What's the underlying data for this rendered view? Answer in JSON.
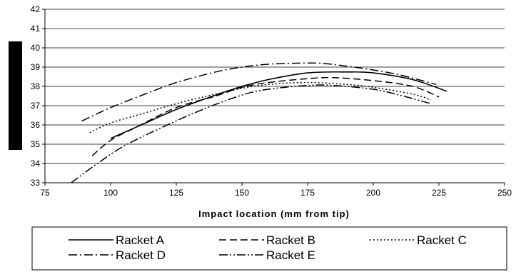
{
  "chart_data": {
    "type": "line",
    "title": "",
    "xlabel": "Impact location (mm from tip)",
    "ylabel": "",
    "xlim": [
      75,
      250
    ],
    "ylim": [
      33,
      42
    ],
    "x_ticks": [
      "75",
      "100",
      "125",
      "150",
      "175",
      "200",
      "225",
      "250"
    ],
    "y_ticks": [
      "33",
      "34",
      "35",
      "36",
      "37",
      "38",
      "39",
      "40",
      "41",
      "42"
    ],
    "grid": "horizontal",
    "legend_position": "bottom",
    "series": [
      {
        "name": "Racket A",
        "style": "solid",
        "x": [
          100,
          110,
          125,
          140,
          150,
          160,
          175,
          190,
          200,
          215,
          228
        ],
        "y": [
          35.3,
          35.9,
          36.8,
          37.55,
          38.0,
          38.35,
          38.7,
          38.75,
          38.7,
          38.35,
          37.75
        ]
      },
      {
        "name": "Racket B",
        "style": "dashed",
        "x": [
          93,
          100,
          110,
          125,
          140,
          150,
          160,
          175,
          185,
          200,
          215,
          225
        ],
        "y": [
          34.4,
          35.2,
          35.9,
          36.9,
          37.5,
          37.95,
          38.2,
          38.4,
          38.45,
          38.3,
          38.0,
          37.45
        ]
      },
      {
        "name": "Racket C",
        "style": "dotted",
        "x": [
          92,
          100,
          110,
          125,
          140,
          150,
          160,
          175,
          190,
          200,
          215,
          222
        ],
        "y": [
          35.6,
          36.1,
          36.5,
          37.1,
          37.6,
          37.9,
          38.1,
          38.2,
          38.1,
          37.95,
          37.6,
          37.3
        ]
      },
      {
        "name": "Racket D",
        "style": "dash-dot",
        "x": [
          89,
          100,
          115,
          125,
          140,
          150,
          160,
          170,
          180,
          190,
          200,
          210,
          224
        ],
        "y": [
          36.2,
          36.9,
          37.7,
          38.2,
          38.75,
          39.0,
          39.15,
          39.2,
          39.2,
          39.05,
          38.85,
          38.6,
          38.1
        ]
      },
      {
        "name": "Racket E",
        "style": "dash-dot-dot",
        "x": [
          85,
          95,
          105,
          120,
          135,
          150,
          160,
          175,
          185,
          200,
          210,
          222
        ],
        "y": [
          33.0,
          34.0,
          34.9,
          35.9,
          36.8,
          37.55,
          37.85,
          38.05,
          38.05,
          37.85,
          37.55,
          37.1
        ]
      }
    ]
  }
}
